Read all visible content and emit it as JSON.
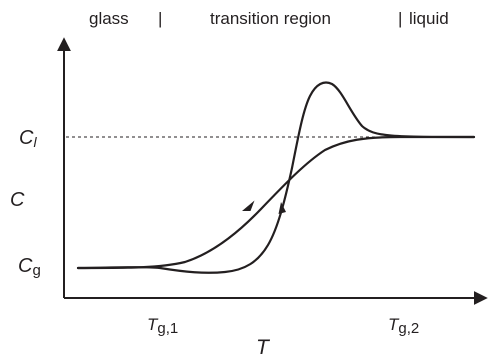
{
  "regions": {
    "glass": "glass",
    "transition": "transition region",
    "liquid": "liquid",
    "separator": "|"
  },
  "y_labels": {
    "c_l": {
      "main": "C",
      "sub": "l"
    },
    "c": "C",
    "c_g": {
      "main": "C",
      "sub": "g"
    }
  },
  "x_labels": {
    "tg1": {
      "main": "T",
      "sub": "g,1"
    },
    "tg2": {
      "main": "T",
      "sub": "g,2"
    },
    "t": "T"
  },
  "colors": {
    "ink": "#231f20",
    "background": "#ffffff"
  }
}
